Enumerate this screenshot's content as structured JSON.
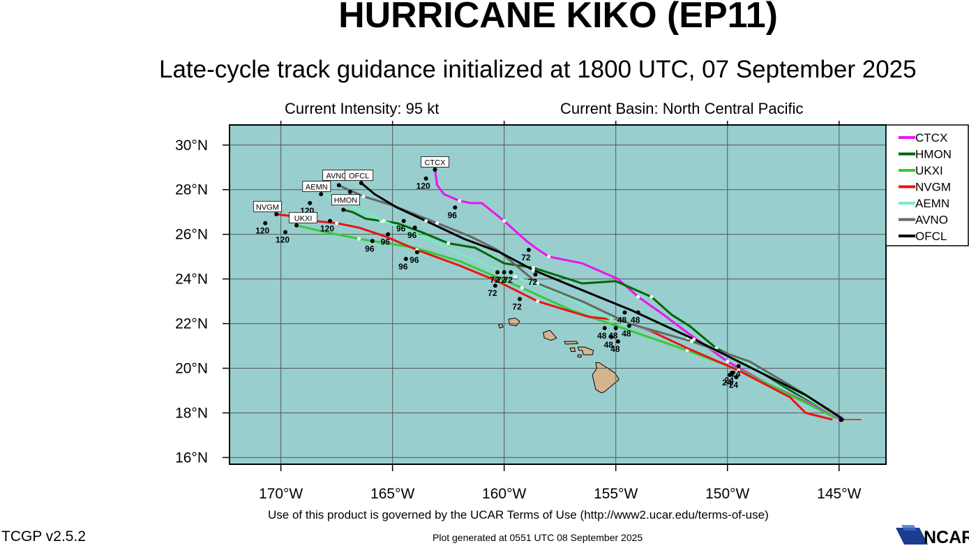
{
  "header": {
    "title": "HURRICANE KIKO (EP11)",
    "subtitle": "Late-cycle track guidance initialized at 1800 UTC, 07 September 2025",
    "current_intensity": "Current Intensity: 95 kt",
    "current_basin": "Current Basin: North Central Pacific"
  },
  "footer": {
    "terms": "Use of this product is governed by the UCAR Terms of Use (http://www2.ucar.edu/terms-of-use)",
    "version": "TCGP v2.5.2",
    "generated": "Plot generated at 0551 UTC   08 September 2025",
    "logo_text": "NCAR"
  },
  "colors": {
    "ocean": "#98cece",
    "land": "#d3b48f",
    "grid": "#555555"
  },
  "chart_data": {
    "type": "map-track",
    "xlim": [
      -172.3,
      -142.9
    ],
    "ylim": [
      15.7,
      30.9
    ],
    "lon_ticks": [
      -170,
      -165,
      -160,
      -155,
      -150,
      -145
    ],
    "lat_ticks": [
      16,
      18,
      20,
      22,
      24,
      26,
      28,
      30
    ],
    "lon_tick_labels": [
      "170°W",
      "165°W",
      "160°W",
      "155°W",
      "150°W",
      "145°W"
    ],
    "lat_tick_labels": [
      "16°N",
      "18°N",
      "20°N",
      "22°N",
      "24°N",
      "26°N",
      "28°N",
      "30°N"
    ],
    "grid": true,
    "legend_position": "right",
    "initial_position": {
      "lon": -144.9,
      "lat": 17.7
    },
    "tau_labels": [
      "24",
      "48",
      "72",
      "96",
      "120"
    ],
    "series": [
      {
        "name": "CTCX",
        "color": "#ee11ee",
        "lon": [
          -144.9,
          -146.5,
          -148.2,
          -150.0,
          -151.8,
          -153.0,
          -154.0,
          -154.9,
          -156.5,
          -158.0,
          -158.6,
          -159.0,
          -160.0,
          -161.0,
          -161.5,
          -162.0,
          -162.7,
          -163.0,
          -163.1
        ],
        "lat": [
          17.7,
          18.5,
          19.3,
          20.3,
          21.6,
          22.5,
          23.2,
          24.0,
          24.7,
          25.0,
          25.4,
          25.7,
          26.6,
          27.4,
          27.4,
          27.5,
          27.8,
          28.2,
          28.9
        ]
      },
      {
        "name": "HMON",
        "color": "#006600",
        "lon": [
          -144.9,
          -147.0,
          -149.3,
          -150.5,
          -151.7,
          -152.5,
          -153.4,
          -155.0,
          -156.5,
          -158.7,
          -160.0,
          -161.3,
          -162.5,
          -163.7,
          -164.8,
          -165.5,
          -166.2,
          -166.8,
          -167.2
        ],
        "lat": [
          17.8,
          18.9,
          20.3,
          20.9,
          21.9,
          22.4,
          23.2,
          23.9,
          23.8,
          24.5,
          24.7,
          25.4,
          25.6,
          26.1,
          26.5,
          26.6,
          26.7,
          27.0,
          27.1
        ]
      },
      {
        "name": "UKXI",
        "color": "#33cc33",
        "lon": [
          -145.2,
          -147.2,
          -149.4,
          -151.8,
          -154.4,
          -157.0,
          -159.2,
          -162.0,
          -164.0,
          -166.5,
          -168.0,
          -169.3
        ],
        "lat": [
          17.8,
          18.8,
          19.9,
          20.8,
          21.7,
          22.6,
          23.6,
          24.8,
          25.4,
          25.8,
          26.1,
          26.4
        ]
      },
      {
        "name": "NVGM",
        "color": "#ee1111",
        "lon": [
          -145.3,
          -146.5,
          -147.2,
          -149.5,
          -151.8,
          -153.5,
          -155.2,
          -156.2,
          -157.2,
          -158.5,
          -160.3,
          -162.0,
          -163.9,
          -165.3,
          -166.5,
          -167.5,
          -168.5,
          -169.4,
          -170.2
        ],
        "lat": [
          17.7,
          18.0,
          18.7,
          19.9,
          20.9,
          21.7,
          22.2,
          22.3,
          22.6,
          23.0,
          23.9,
          24.6,
          25.3,
          25.9,
          26.3,
          26.5,
          26.6,
          26.8,
          26.9
        ]
      },
      {
        "name": "AEMN",
        "color": "#77eebb",
        "lon": [
          -145.0,
          -147.0,
          -149.3,
          -151.8,
          -155.0,
          -157.7,
          -159.5,
          -161.0,
          -163.0,
          -165.4,
          -166.5,
          -167.4,
          -168.2
        ],
        "lat": [
          17.8,
          19.0,
          20.3,
          21.3,
          22.1,
          23.4,
          24.1,
          24.7,
          25.6,
          26.6,
          27.1,
          27.5,
          27.8
        ]
      },
      {
        "name": "AVNO",
        "color": "#666666",
        "lon": [
          -144.9,
          -146.8,
          -149.0,
          -151.6,
          -154.4,
          -156.5,
          -158.5,
          -160.3,
          -161.5,
          -163.0,
          -164.0,
          -165.0,
          -166.3,
          -167.2,
          -167.4
        ],
        "lat": [
          17.8,
          19.0,
          20.3,
          21.2,
          22.0,
          23.0,
          23.8,
          25.3,
          25.9,
          26.5,
          26.9,
          27.3,
          27.7,
          28.1,
          28.2
        ]
      },
      {
        "name": "OFCL",
        "color": "#000000",
        "lon": [
          -144.8,
          -146.5,
          -149.3,
          -151.5,
          -154.3,
          -157.0,
          -158.7,
          -160.2,
          -161.8,
          -163.5,
          -164.8,
          -165.8,
          -166.4
        ],
        "lat": [
          17.7,
          18.8,
          20.2,
          21.3,
          22.6,
          23.7,
          24.4,
          25.2,
          25.8,
          26.6,
          27.2,
          27.8,
          28.3
        ]
      }
    ],
    "markers": [
      {
        "label": "24",
        "lon": -149.5,
        "lat": 20.1
      },
      {
        "label": "24",
        "lon": -149.8,
        "lat": 19.8
      },
      {
        "label": "24",
        "lon": -149.9,
        "lat": 19.7
      },
      {
        "label": "24",
        "lon": -149.6,
        "lat": 19.6
      },
      {
        "label": "48",
        "lon": -154.6,
        "lat": 22.5
      },
      {
        "label": "48",
        "lon": -154.0,
        "lat": 22.5
      },
      {
        "label": "48",
        "lon": -154.4,
        "lat": 21.9
      },
      {
        "label": "48",
        "lon": -155.5,
        "lat": 21.8
      },
      {
        "label": "48",
        "lon": -155.0,
        "lat": 21.8
      },
      {
        "label": "48",
        "lon": -155.2,
        "lat": 21.4
      },
      {
        "label": "48",
        "lon": -154.9,
        "lat": 21.2
      },
      {
        "label": "72",
        "lon": -158.9,
        "lat": 25.3
      },
      {
        "label": "72",
        "lon": -160.3,
        "lat": 24.3
      },
      {
        "label": "72",
        "lon": -160.0,
        "lat": 24.3
      },
      {
        "label": "72",
        "lon": -159.7,
        "lat": 24.3
      },
      {
        "label": "72",
        "lon": -158.6,
        "lat": 24.2
      },
      {
        "label": "72",
        "lon": -160.4,
        "lat": 23.7
      },
      {
        "label": "72",
        "lon": -159.3,
        "lat": 23.1
      },
      {
        "label": "96",
        "lon": -162.2,
        "lat": 27.2
      },
      {
        "label": "96",
        "lon": -164.5,
        "lat": 26.6
      },
      {
        "label": "96",
        "lon": -164.0,
        "lat": 26.3
      },
      {
        "label": "96",
        "lon": -165.2,
        "lat": 26.0
      },
      {
        "label": "96",
        "lon": -165.9,
        "lat": 25.7
      },
      {
        "label": "96",
        "lon": -163.9,
        "lat": 25.2
      },
      {
        "label": "96",
        "lon": -164.4,
        "lat": 24.9
      },
      {
        "label": "120",
        "lon": -163.5,
        "lat": 28.5
      },
      {
        "label": "120",
        "lon": -166.9,
        "lat": 27.9
      },
      {
        "label": "120",
        "lon": -168.7,
        "lat": 27.4
      },
      {
        "label": "120",
        "lon": -167.8,
        "lat": 26.6
      },
      {
        "label": "120",
        "lon": -170.7,
        "lat": 26.5
      },
      {
        "label": "120",
        "lon": -169.8,
        "lat": 26.1
      }
    ],
    "model_tags": [
      {
        "name": "CTCX",
        "lon": -163.1,
        "lat": 29.2
      },
      {
        "name": "AVNO",
        "lon": -167.5,
        "lat": 28.6
      },
      {
        "name": "OFCL",
        "lon": -166.5,
        "lat": 28.6
      },
      {
        "name": "AEMN",
        "lon": -168.4,
        "lat": 28.1
      },
      {
        "name": "HMON",
        "lon": -167.1,
        "lat": 27.5
      },
      {
        "name": "NVGM",
        "lon": -170.6,
        "lat": 27.2
      },
      {
        "name": "UKXI",
        "lon": -169.0,
        "lat": 26.7
      }
    ]
  }
}
